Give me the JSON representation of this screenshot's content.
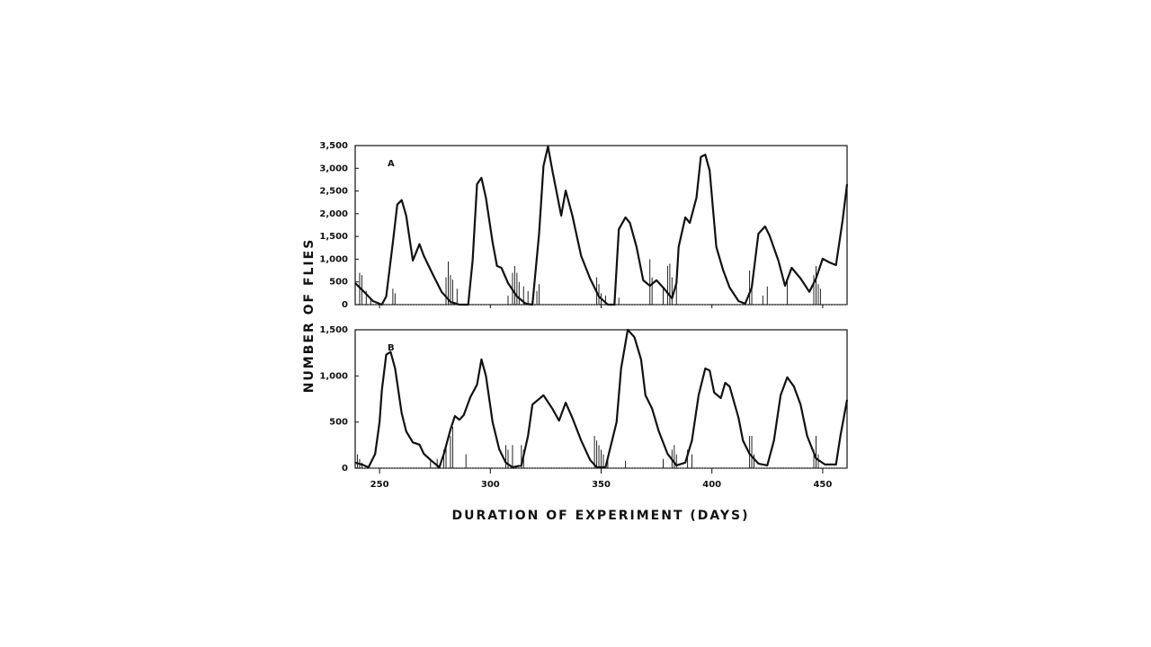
{
  "xlabel": "DURATION OF EXPERIMENT (DAYS)",
  "ylabel": "NUMBER OF FLIES",
  "chart_data": [
    {
      "type": "line",
      "title": "A",
      "xlim": [
        239,
        461
      ],
      "ylim": [
        0,
        3500
      ],
      "xticks": [
        250,
        300,
        350,
        400,
        450
      ],
      "yticks": [
        0,
        500,
        {
          "value": 1000,
          "label": "1,000"
        },
        {
          "value": 1500,
          "label": "1,500"
        },
        {
          "value": 2000,
          "label": "2,000"
        },
        {
          "value": 2500,
          "label": "2,500"
        },
        {
          "value": 3000,
          "label": "3,000"
        },
        {
          "value": 3500,
          "label": "3,500"
        }
      ],
      "series": [
        {
          "type": "bar",
          "color": "#222222",
          "x": [
            241,
            242,
            244,
            246,
            256,
            257,
            280,
            281,
            282,
            283,
            285,
            308,
            310,
            311,
            312,
            313,
            315,
            317,
            321,
            322,
            348,
            349,
            350,
            352,
            358,
            372,
            373,
            378,
            380,
            381,
            382,
            384,
            417,
            418,
            423,
            425,
            434,
            446,
            447,
            448,
            449
          ],
          "values": [
            700,
            650,
            300,
            150,
            350,
            250,
            600,
            950,
            650,
            550,
            350,
            200,
            700,
            850,
            700,
            500,
            400,
            300,
            300,
            450,
            600,
            450,
            250,
            200,
            150,
            1000,
            600,
            400,
            850,
            900,
            600,
            450,
            750,
            500,
            200,
            400,
            500,
            650,
            850,
            450,
            350
          ]
        },
        {
          "type": "line",
          "color": "#111111",
          "x": [
            239,
            243,
            247,
            251,
            253,
            256,
            258,
            260,
            262,
            265,
            268,
            270,
            274,
            278,
            282,
            286,
            290,
            292,
            294,
            296,
            298,
            301,
            303,
            305,
            308,
            312,
            316,
            319,
            322,
            324,
            326,
            328,
            332,
            334,
            337,
            341,
            345,
            349,
            353,
            356,
            358,
            361,
            363,
            366,
            369,
            372,
            375,
            378,
            382,
            384,
            385,
            388,
            390,
            393,
            395,
            397,
            399,
            402,
            405,
            408,
            412,
            415,
            418,
            421,
            424,
            426,
            430,
            433,
            436,
            440,
            444,
            447,
            450,
            453,
            456,
            459,
            461
          ],
          "values": [
            475,
            280,
            80,
            0,
            180,
            1370,
            2200,
            2300,
            1960,
            970,
            1330,
            1070,
            670,
            280,
            60,
            0,
            0,
            970,
            2650,
            2790,
            2350,
            1370,
            850,
            810,
            475,
            180,
            20,
            0,
            1560,
            3050,
            3480,
            2950,
            1960,
            2510,
            1960,
            1070,
            575,
            180,
            0,
            0,
            1660,
            1920,
            1800,
            1270,
            535,
            415,
            535,
            375,
            140,
            475,
            1270,
            1920,
            1800,
            2350,
            3250,
            3300,
            2950,
            1270,
            770,
            375,
            80,
            20,
            375,
            1560,
            1720,
            1520,
            970,
            415,
            810,
            575,
            280,
            575,
            1010,
            930,
            870,
            1860,
            2650
          ]
        }
      ]
    },
    {
      "type": "line",
      "title": "B",
      "xlim": [
        239,
        461
      ],
      "ylim": [
        0,
        1500
      ],
      "xticks": [
        250,
        300,
        350,
        400,
        450
      ],
      "yticks": [
        0,
        500,
        {
          "value": 1000,
          "label": "1,000"
        },
        {
          "value": 1500,
          "label": "1,500"
        }
      ],
      "series": [
        {
          "type": "bar",
          "color": "#222222",
          "x": [
            240,
            241,
            242,
            273,
            276,
            279,
            280,
            282,
            283,
            289,
            307,
            308,
            310,
            314,
            315,
            347,
            348,
            349,
            350,
            351,
            353,
            361,
            378,
            382,
            383,
            384,
            389,
            391,
            417,
            418,
            419,
            446,
            447,
            448
          ],
          "values": [
            150,
            100,
            60,
            80,
            100,
            200,
            250,
            350,
            450,
            150,
            250,
            200,
            250,
            250,
            200,
            350,
            300,
            250,
            200,
            150,
            100,
            80,
            100,
            200,
            250,
            150,
            200,
            150,
            350,
            350,
            150,
            200,
            350,
            150
          ]
        },
        {
          "type": "line",
          "color": "#111111",
          "x": [
            239,
            242,
            245,
            248,
            250,
            251,
            253,
            255,
            257,
            260,
            262,
            265,
            268,
            270,
            273,
            277,
            279,
            282,
            284,
            286,
            288,
            291,
            294,
            296,
            298,
            301,
            304,
            307,
            310,
            314,
            317,
            319,
            324,
            328,
            331,
            334,
            337,
            341,
            345,
            348,
            352,
            357,
            359,
            362,
            365,
            368,
            370,
            373,
            376,
            380,
            384,
            388,
            391,
            394,
            397,
            399,
            401,
            404,
            406,
            408,
            412,
            414,
            417,
            421,
            425,
            428,
            431,
            434,
            437,
            440,
            443,
            447,
            451,
            456,
            458,
            461
          ],
          "values": [
            60,
            40,
            10,
            155,
            500,
            840,
            1230,
            1260,
            1080,
            595,
            400,
            280,
            255,
            155,
            90,
            10,
            155,
            420,
            565,
            525,
            575,
            770,
            905,
            1180,
            1000,
            500,
            205,
            60,
            10,
            30,
            350,
            690,
            790,
            645,
            515,
            710,
            545,
            300,
            90,
            10,
            10,
            500,
            1080,
            1500,
            1420,
            1180,
            790,
            645,
            400,
            155,
            30,
            60,
            300,
            790,
            1080,
            1060,
            820,
            760,
            925,
            885,
            545,
            300,
            155,
            50,
            30,
            300,
            790,
            985,
            885,
            690,
            350,
            105,
            40,
            40,
            350,
            740
          ]
        }
      ]
    }
  ]
}
